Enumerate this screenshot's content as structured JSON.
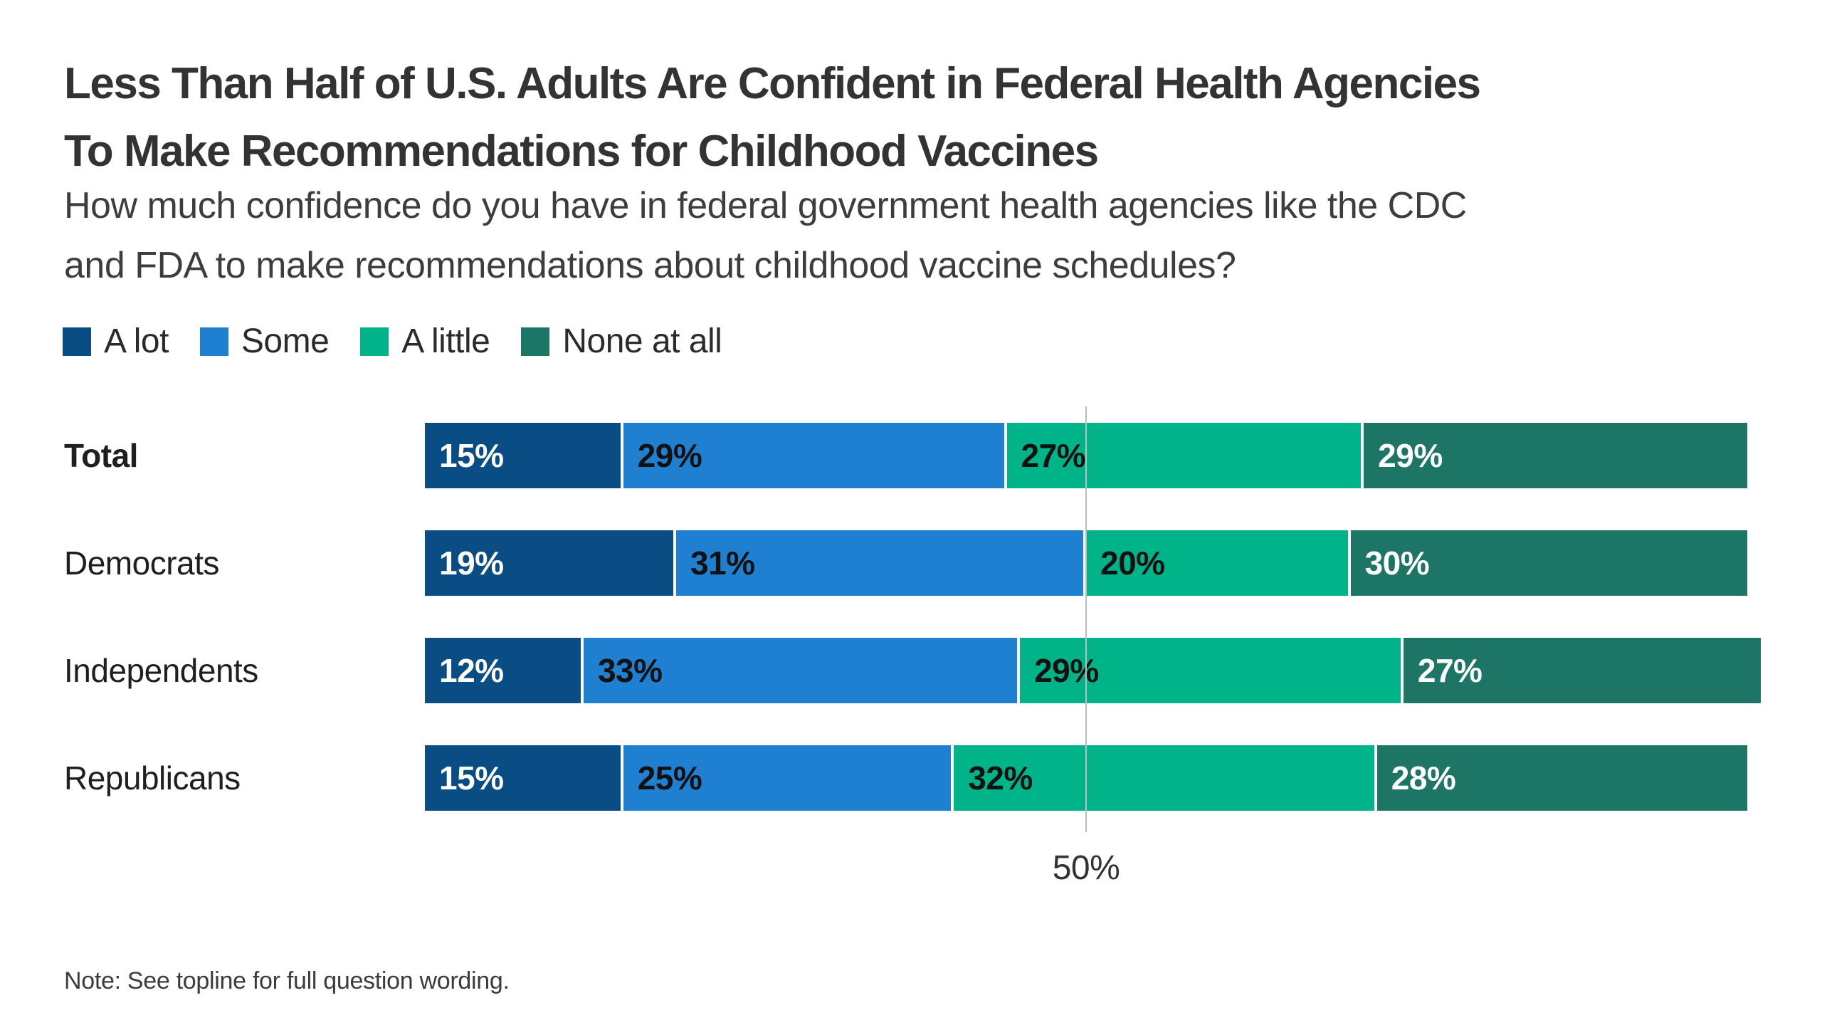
{
  "title_lines": [
    "Less Than Half of U.S. Adults Are Confident in Federal Health Agencies",
    "To Make Recommendations for Childhood Vaccines"
  ],
  "subtitle_lines": [
    "How much confidence do you have in federal government health agencies like the CDC",
    "and FDA to make recommendations about childhood vaccine schedules?"
  ],
  "note": "Note: See topline for full question wording.",
  "colors": {
    "a_lot": "#0a4d85",
    "some": "#1f80d2",
    "a_little": "#00b388",
    "none_at_all": "#1d7565",
    "gridline": "#bdbdbd"
  },
  "legend": [
    {
      "label": "A lot",
      "color": "#0a4d85"
    },
    {
      "label": "Some",
      "color": "#1f80d2"
    },
    {
      "label": "A little",
      "color": "#00b388"
    },
    {
      "label": "None at all",
      "color": "#1d7565"
    }
  ],
  "chart_data": {
    "type": "bar",
    "stacked": true,
    "orientation": "horizontal",
    "title": "Less Than Half of U.S. Adults Are Confident in Federal Health Agencies To Make Recommendations for Childhood Vaccines",
    "subtitle": "How much confidence do you have in federal government health agencies like the CDC and FDA to make recommendations about childhood vaccine schedules?",
    "categories": [
      "Total",
      "Democrats",
      "Independents",
      "Republicans"
    ],
    "series": [
      {
        "name": "A lot",
        "color": "#0a4d85",
        "label_color": "#ffffff",
        "values": [
          15,
          19,
          12,
          15
        ]
      },
      {
        "name": "Some",
        "color": "#1f80d2",
        "label_color": "#111111",
        "values": [
          29,
          31,
          33,
          25
        ]
      },
      {
        "name": "A little",
        "color": "#00b388",
        "label_color": "#111111",
        "values": [
          27,
          20,
          29,
          32
        ]
      },
      {
        "name": "None at all",
        "color": "#1d7565",
        "label_color": "#ffffff",
        "values": [
          29,
          30,
          27,
          28
        ]
      }
    ],
    "value_suffix": "%",
    "xlim": [
      0,
      100
    ],
    "grid": true,
    "gridline": {
      "value": 50,
      "label": "50%"
    },
    "legend_position": "top",
    "note": "Note: See topline for full question wording."
  }
}
